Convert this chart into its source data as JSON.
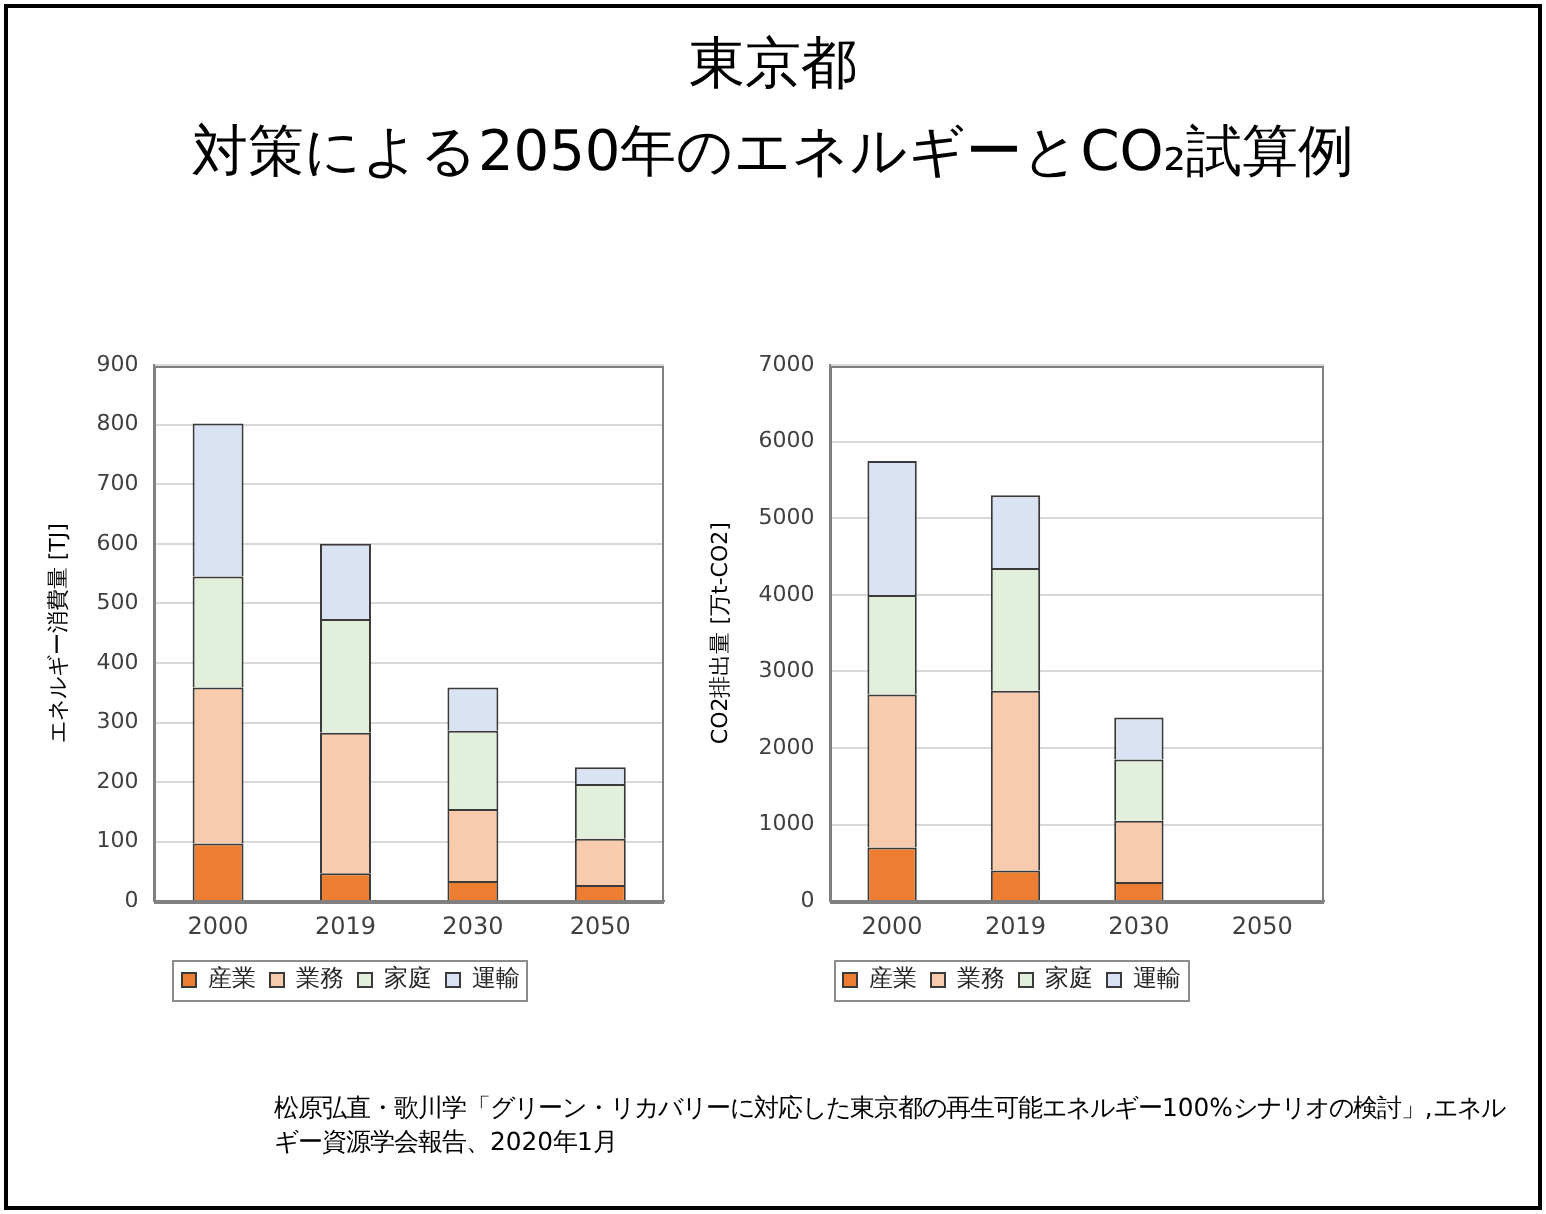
{
  "chart_data": [
    {
      "type": "bar",
      "title": "東京都",
      "subtitle": "対策による2050年のエネルギーとCO₂試算例",
      "ylabel": "エネルギー消費量 [TJ]",
      "categories": [
        "2000",
        "2019",
        "2030",
        "2050"
      ],
      "stacked": true,
      "series": [
        {
          "name": "産業",
          "color": "#ed7d31",
          "values": [
            97,
            47,
            34,
            27
          ]
        },
        {
          "name": "業務",
          "color": "#f8cbad",
          "values": [
            262,
            236,
            121,
            78
          ]
        },
        {
          "name": "家庭",
          "color": "#e2efda",
          "values": [
            186,
            191,
            131,
            92
          ]
        },
        {
          "name": "運輸",
          "color": "#dae3f3",
          "values": [
            257,
            126,
            73,
            28
          ]
        }
      ],
      "ylim": [
        0,
        900
      ],
      "yticks": [
        0,
        100,
        200,
        300,
        400,
        500,
        600,
        700,
        800,
        900
      ],
      "grid": "y",
      "legend": "bottom",
      "annotations": [
        "松原弘直・歌川学「グリーン・リカバリーに対応した東京都の再生可能エネルギー100%シナリオの検討」,エネルギー資源学会報告、2020年1月"
      ]
    },
    {
      "type": "bar",
      "ylabel": "CO2排出量 [万t-CO2]",
      "categories": [
        "2000",
        "2019",
        "2030",
        "2050"
      ],
      "stacked": true,
      "series": [
        {
          "name": "産業",
          "color": "#ed7d31",
          "values": [
            700,
            400,
            250,
            null
          ]
        },
        {
          "name": "業務",
          "color": "#f8cbad",
          "values": [
            2000,
            2350,
            800,
            null
          ]
        },
        {
          "name": "家庭",
          "color": "#e2efda",
          "values": [
            1300,
            1600,
            800,
            null
          ]
        },
        {
          "name": "運輸",
          "color": "#dae3f3",
          "values": [
            1750,
            950,
            550,
            null
          ]
        }
      ],
      "ylim": [
        0,
        7000
      ],
      "yticks": [
        0,
        1000,
        2000,
        3000,
        4000,
        5000,
        6000,
        7000
      ],
      "grid": "y",
      "legend": "bottom"
    }
  ]
}
